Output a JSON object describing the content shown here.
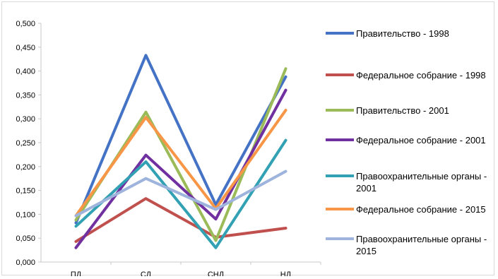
{
  "chart_data": {
    "type": "line",
    "categories": [
      "ПД",
      "СД",
      "СНД",
      "НД"
    ],
    "ylim": [
      0,
      0.5
    ],
    "yticks": [
      "0,000",
      "0,050",
      "0,100",
      "0,150",
      "0,200",
      "0,250",
      "0,300",
      "0,350",
      "0,400",
      "0,450",
      "0,500"
    ],
    "grid": false,
    "legend_position": "right",
    "series": [
      {
        "name": "Правительство - 1998",
        "color": "#4472c4",
        "values": [
          0.082,
          0.433,
          0.12,
          0.388
        ]
      },
      {
        "name": "Федеральное собрание - 1998",
        "color": "#c0504d",
        "values": [
          0.043,
          0.133,
          0.052,
          0.071
        ]
      },
      {
        "name": "Правительство - 2001",
        "color": "#9bbb59",
        "values": [
          0.088,
          0.314,
          0.045,
          0.405
        ]
      },
      {
        "name": "Федеральное собрание - 2001",
        "color": "#7030a0",
        "values": [
          0.03,
          0.224,
          0.09,
          0.36
        ]
      },
      {
        "name": "Правоохранительные органы - 2001",
        "color": "#31a1b3",
        "values": [
          0.075,
          0.21,
          0.03,
          0.255
        ]
      },
      {
        "name": "Федеральное собрание - 2015",
        "color": "#f79646",
        "values": [
          0.097,
          0.303,
          0.112,
          0.318
        ]
      },
      {
        "name": "Правоохранительные органы - 2015",
        "color": "#9eb4dc",
        "values": [
          0.097,
          0.175,
          0.11,
          0.19
        ]
      }
    ]
  }
}
